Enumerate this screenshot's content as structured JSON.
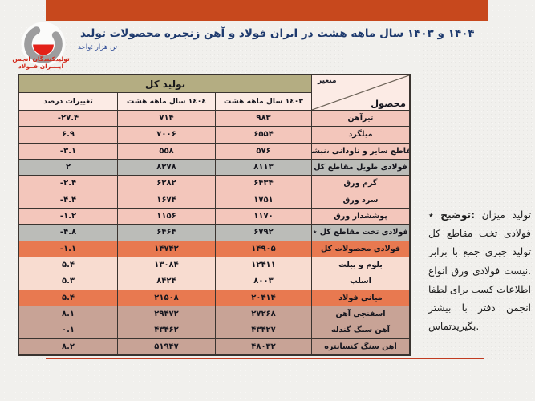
{
  "page": {
    "background": "#f1f0ed",
    "banner_color": "#c7481d",
    "rule_color": "#c13b21"
  },
  "header": {
    "title": "تولید محصولات زنجیره آهن و فولاد ایران در هشت ماهه سال ۱۴۰۳ و ۱۴۰۴",
    "unit_label": "واحد: هزار تن",
    "logo_caption_line1": "انجمن تولیدکنندگان",
    "logo_caption_line2": "فــولاد ایــــران"
  },
  "table": {
    "total_header": "کل تولید",
    "corner": {
      "variable_label": "متغیر",
      "product_label": "محصول"
    },
    "column_headers": [
      "درصد تغییرات",
      "هشت ماهه سال ١٤٠٤",
      "هشت ماهه سال ١٤٠٣"
    ],
    "row_colors": {
      "pink": "#f3c6bb",
      "gray": "#bbbcb8",
      "orange": "#e87950",
      "cream": "#f8dcd0",
      "rose": "#c8a396",
      "header_olive": "#b4ad82",
      "header_pink": "#fcebe5"
    },
    "rows": [
      {
        "name": "تیرآهن",
        "y1403": "۹۸۳",
        "y1404": "۷۱۴",
        "pct": "-۲۷.۴",
        "style": "pink"
      },
      {
        "name": "میلگرد",
        "y1403": "۶۵۵۴",
        "y1404": "۷۰۰۶",
        "pct": "۶.۹",
        "style": "pink"
      },
      {
        "name": "نبشی، ناودانی و سایر مقاطع",
        "y1403": "۵۷۶",
        "y1404": "۵۵۸",
        "pct": "-۳.۱",
        "style": "pink"
      },
      {
        "name": "کل مقاطع طویل فولادی",
        "y1403": "۸۱۱۳",
        "y1404": "۸۲۷۸",
        "pct": "۲",
        "style": "gray"
      },
      {
        "name": "ورق گرم",
        "y1403": "۶۴۳۴",
        "y1404": "۶۲۸۲",
        "pct": "-۲.۴",
        "style": "pink"
      },
      {
        "name": "ورق سرد",
        "y1403": "۱۷۵۱",
        "y1404": "۱۶۷۴",
        "pct": "-۴.۴",
        "style": "pink"
      },
      {
        "name": "ورق پوششدار",
        "y1403": "۱۱۷۰",
        "y1404": "۱۱۵۶",
        "pct": "-۱.۲",
        "style": "pink"
      },
      {
        "name": "٭ کل مقاطع تخت فولادی",
        "y1403": "۶۷۹۲",
        "y1404": "۶۴۶۴",
        "pct": "-۴.۸",
        "style": "gray"
      },
      {
        "name": "کل محصولات فولادی",
        "y1403": "۱۴۹۰۵",
        "y1404": "۱۴۷۴۲",
        "pct": "-۱.۱",
        "style": "orange"
      },
      {
        "name": "بیلت و بلوم",
        "y1403": "۱۲۴۱۱",
        "y1404": "۱۳۰۸۴",
        "pct": "۵.۴",
        "style": "cream"
      },
      {
        "name": "اسلب",
        "y1403": "۸۰۰۳",
        "y1404": "۸۴۲۴",
        "pct": "۵.۳",
        "style": "cream"
      },
      {
        "name": "فولاد میانی",
        "y1403": "۲۰۴۱۴",
        "y1404": "۲۱۵۰۸",
        "pct": "۵.۴",
        "style": "orange"
      },
      {
        "name": "آهن اسفنجی",
        "y1403": "۲۷۲۶۸",
        "y1404": "۲۹۴۷۲",
        "pct": "۸.۱",
        "style": "rose"
      },
      {
        "name": "گندله سنگ آهن",
        "y1403": "۴۳۴۲۷",
        "y1404": "۴۳۴۶۲",
        "pct": "۰.۱",
        "style": "rose"
      },
      {
        "name": "کنسانتره سنگ آهن",
        "y1403": "۴۸۰۳۲",
        "y1404": "۵۱۹۴۷",
        "pct": "۸.۲",
        "style": "rose"
      }
    ]
  },
  "note": {
    "bold_token": "توضیح:",
    "lines": [
      "٭ توضیح: میزان تولید",
      "کل مقاطع تخت فولادی",
      "برابر با جمع جبری تولید",
      "انواع ورق فولادی نیست.",
      "لطفا برای کسب اطلاعات",
      "بیشتر با دفتر انجمن",
      "تماس بگیرید."
    ]
  }
}
